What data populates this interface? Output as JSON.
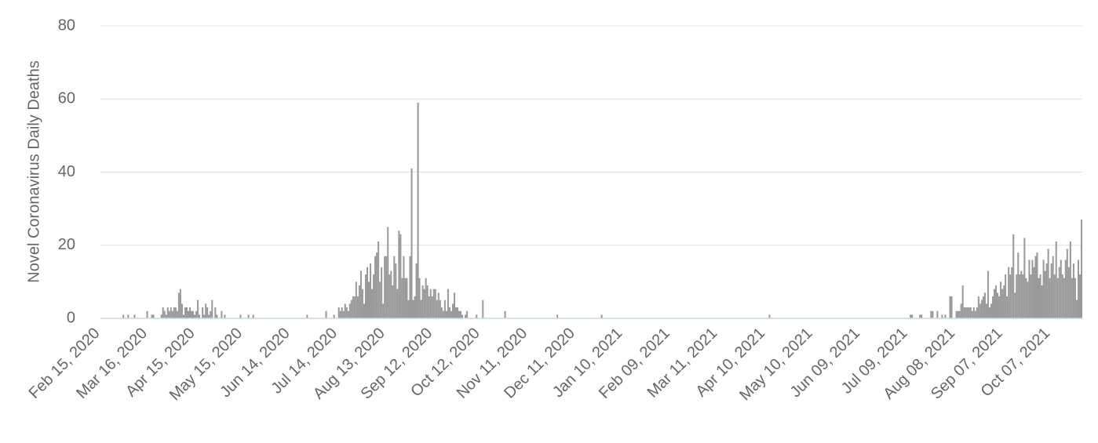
{
  "chart_data": {
    "type": "bar",
    "y_label": "Novel Coronavirus Daily Deaths",
    "color": "#999999",
    "ylim": [
      0,
      80
    ],
    "yticks": [
      0,
      20,
      40,
      60,
      80
    ],
    "grid": true,
    "categories": [
      "Feb 15, 2020",
      null,
      null,
      null,
      null,
      null,
      null,
      null,
      null,
      null,
      null,
      null,
      null,
      null,
      null,
      null,
      null,
      null,
      null,
      null,
      null,
      null,
      null,
      null,
      null,
      null,
      null,
      null,
      null,
      null,
      "Mar 16, 2020",
      null,
      null,
      null,
      null,
      null,
      null,
      null,
      null,
      null,
      null,
      null,
      null,
      null,
      null,
      null,
      null,
      null,
      null,
      null,
      null,
      null,
      null,
      null,
      null,
      null,
      null,
      null,
      null,
      null,
      "Apr 15, 2020",
      null,
      null,
      null,
      null,
      null,
      null,
      null,
      null,
      null,
      null,
      null,
      null,
      null,
      null,
      null,
      null,
      null,
      null,
      null,
      null,
      null,
      null,
      null,
      null,
      null,
      null,
      null,
      null,
      null,
      "May 15, 2020",
      null,
      null,
      null,
      null,
      null,
      null,
      null,
      null,
      null,
      null,
      null,
      null,
      null,
      null,
      null,
      null,
      null,
      null,
      null,
      null,
      null,
      null,
      null,
      null,
      null,
      null,
      null,
      null,
      null,
      "Jun 14, 2020",
      null,
      null,
      null,
      null,
      null,
      null,
      null,
      null,
      null,
      null,
      null,
      null,
      null,
      null,
      null,
      null,
      null,
      null,
      null,
      null,
      null,
      null,
      null,
      null,
      null,
      null,
      null,
      null,
      null,
      "Jul 14, 2020",
      null,
      null,
      null,
      null,
      null,
      null,
      null,
      null,
      null,
      null,
      null,
      null,
      null,
      null,
      null,
      null,
      null,
      null,
      null,
      null,
      null,
      null,
      null,
      null,
      null,
      null,
      null,
      null,
      null,
      "Aug 13, 2020",
      null,
      null,
      null,
      null,
      null,
      null,
      null,
      null,
      null,
      null,
      null,
      null,
      null,
      null,
      null,
      null,
      null,
      null,
      null,
      null,
      null,
      null,
      null,
      null,
      null,
      null,
      null,
      null,
      null,
      "Sep 12, 2020",
      null,
      null,
      null,
      null,
      null,
      null,
      null,
      null,
      null,
      null,
      null,
      null,
      null,
      null,
      null,
      null,
      null,
      null,
      null,
      null,
      null,
      null,
      null,
      null,
      null,
      null,
      null,
      null,
      null,
      "Oct 12, 2020",
      null,
      null,
      null,
      null,
      null,
      null,
      null,
      null,
      null,
      null,
      null,
      null,
      null,
      null,
      null,
      null,
      null,
      null,
      null,
      null,
      null,
      null,
      null,
      null,
      null,
      null,
      null,
      null,
      null,
      "Nov 11, 2020",
      null,
      null,
      null,
      null,
      null,
      null,
      null,
      null,
      null,
      null,
      null,
      null,
      null,
      null,
      null,
      null,
      null,
      null,
      null,
      null,
      null,
      null,
      null,
      null,
      null,
      null,
      null,
      null,
      null,
      "Dec 11, 2020",
      null,
      null,
      null,
      null,
      null,
      null,
      null,
      null,
      null,
      null,
      null,
      null,
      null,
      null,
      null,
      null,
      null,
      null,
      null,
      null,
      null,
      null,
      null,
      null,
      null,
      null,
      null,
      null,
      null,
      "Jan 10, 2021",
      null,
      null,
      null,
      null,
      null,
      null,
      null,
      null,
      null,
      null,
      null,
      null,
      null,
      null,
      null,
      null,
      null,
      null,
      null,
      null,
      null,
      null,
      null,
      null,
      null,
      null,
      null,
      null,
      null,
      "Feb 09, 2021",
      null,
      null,
      null,
      null,
      null,
      null,
      null,
      null,
      null,
      null,
      null,
      null,
      null,
      null,
      null,
      null,
      null,
      null,
      null,
      null,
      null,
      null,
      null,
      null,
      null,
      null,
      null,
      null,
      null,
      "Mar 11, 2021",
      null,
      null,
      null,
      null,
      null,
      null,
      null,
      null,
      null,
      null,
      null,
      null,
      null,
      null,
      null,
      null,
      null,
      null,
      null,
      null,
      null,
      null,
      null,
      null,
      null,
      null,
      null,
      null,
      null,
      "Apr 10, 2021",
      null,
      null,
      null,
      null,
      null,
      null,
      null,
      null,
      null,
      null,
      null,
      null,
      null,
      null,
      null,
      null,
      null,
      null,
      null,
      null,
      null,
      null,
      null,
      null,
      null,
      null,
      null,
      null,
      null,
      "May 10, 2021",
      null,
      null,
      null,
      null,
      null,
      null,
      null,
      null,
      null,
      null,
      null,
      null,
      null,
      null,
      null,
      null,
      null,
      null,
      null,
      null,
      null,
      null,
      null,
      null,
      null,
      null,
      null,
      null,
      null,
      "Jun 09, 2021",
      null,
      null,
      null,
      null,
      null,
      null,
      null,
      null,
      null,
      null,
      null,
      null,
      null,
      null,
      null,
      null,
      null,
      null,
      null,
      null,
      null,
      null,
      null,
      null,
      null,
      null,
      null,
      null,
      null,
      "Jul 09, 2021",
      null,
      null,
      null,
      null,
      null,
      null,
      null,
      null,
      null,
      null,
      null,
      null,
      null,
      null,
      null,
      null,
      null,
      null,
      null,
      null,
      null,
      null,
      null,
      null,
      null,
      null,
      null,
      null,
      null,
      "Aug 08, 2021",
      null,
      null,
      null,
      null,
      null,
      null,
      null,
      null,
      null,
      null,
      null,
      null,
      null,
      null,
      null,
      null,
      null,
      null,
      null,
      null,
      null,
      null,
      null,
      null,
      null,
      null,
      null,
      null,
      null,
      "Sep 07, 2021",
      null,
      null,
      null,
      null,
      null,
      null,
      null,
      null,
      null,
      null,
      null,
      null,
      null,
      null,
      null,
      null,
      null,
      null,
      null,
      null,
      null,
      null,
      null,
      null,
      null,
      null,
      null,
      null,
      null,
      "Oct 07, 2021",
      null,
      null,
      null,
      null,
      null,
      null,
      null,
      null,
      null,
      null,
      null,
      null,
      null,
      null,
      null,
      null,
      null,
      null,
      null
    ],
    "values": [
      0,
      0,
      0,
      0,
      0,
      0,
      0,
      0,
      0,
      0,
      0,
      0,
      0,
      0,
      1,
      0,
      0,
      1,
      0,
      0,
      0,
      1,
      0,
      0,
      0,
      0,
      0,
      0,
      0,
      2,
      0,
      0,
      1,
      1,
      0,
      0,
      0,
      0,
      1,
      3,
      2,
      1,
      3,
      2,
      3,
      2,
      3,
      3,
      2,
      7,
      8,
      4,
      1,
      3,
      3,
      2,
      3,
      2,
      2,
      1,
      2,
      5,
      1,
      0,
      3,
      1,
      4,
      3,
      1,
      2,
      5,
      0,
      3,
      1,
      0,
      0,
      2,
      0,
      1,
      0,
      0,
      0,
      0,
      0,
      0,
      0,
      0,
      0,
      1,
      0,
      0,
      0,
      0,
      1,
      0,
      0,
      1,
      0,
      0,
      0,
      0,
      0,
      0,
      0,
      0,
      0,
      0,
      0,
      0,
      0,
      0,
      0,
      0,
      0,
      0,
      0,
      0,
      0,
      0,
      0,
      0,
      0,
      0,
      0,
      0,
      0,
      0,
      0,
      0,
      0,
      1,
      0,
      0,
      0,
      0,
      0,
      0,
      0,
      0,
      0,
      0,
      0,
      2,
      0,
      0,
      0,
      0,
      1,
      0,
      0,
      3,
      2,
      3,
      2,
      4,
      3,
      2,
      4,
      5,
      6,
      6,
      10,
      6,
      9,
      13,
      8,
      4,
      12,
      14,
      10,
      15,
      8,
      12,
      17,
      18,
      21,
      10,
      14,
      4,
      17,
      17,
      25,
      12,
      13,
      9,
      17,
      15,
      8,
      24,
      23,
      11,
      17,
      11,
      11,
      5,
      17,
      41,
      5,
      6,
      15,
      59,
      11,
      5,
      9,
      8,
      11,
      9,
      6,
      8,
      6,
      8,
      8,
      5,
      7,
      5,
      3,
      2,
      5,
      2,
      8,
      3,
      2,
      4,
      7,
      3,
      3,
      2,
      2,
      1,
      0,
      1,
      2,
      0,
      0,
      0,
      0,
      0,
      1,
      0,
      0,
      0,
      5,
      0,
      0,
      0,
      0,
      0,
      0,
      0,
      0,
      0,
      0,
      0,
      0,
      0,
      2,
      0,
      0,
      0,
      0,
      0,
      0,
      0,
      0,
      0,
      0,
      0,
      0,
      0,
      0,
      0,
      0,
      0,
      0,
      0,
      0,
      0,
      0,
      0,
      0,
      0,
      0,
      0,
      0,
      0,
      0,
      0,
      0,
      1,
      0,
      0,
      0,
      0,
      0,
      0,
      0,
      0,
      0,
      0,
      0,
      0,
      0,
      0,
      0,
      0,
      0,
      0,
      0,
      0,
      0,
      0,
      0,
      0,
      0,
      0,
      0,
      1,
      0,
      0,
      0,
      0,
      0,
      0,
      0,
      0,
      0,
      0,
      0,
      0,
      0,
      0,
      0,
      0,
      0,
      0,
      0,
      0,
      0,
      0,
      0,
      0,
      0,
      0,
      0,
      0,
      0,
      0,
      0,
      0,
      0,
      0,
      0,
      0,
      0,
      0,
      0,
      0,
      0,
      0,
      0,
      0,
      0,
      0,
      0,
      0,
      0,
      0,
      0,
      0,
      0,
      0,
      0,
      0,
      0,
      0,
      0,
      0,
      0,
      0,
      0,
      0,
      0,
      0,
      0,
      0,
      0,
      0,
      0,
      0,
      0,
      0,
      0,
      0,
      0,
      0,
      0,
      0,
      0,
      0,
      0,
      0,
      0,
      0,
      0,
      0,
      0,
      0,
      0,
      0,
      0,
      0,
      0,
      0,
      0,
      0,
      0,
      0,
      0,
      0,
      0,
      0,
      0,
      1,
      0,
      0,
      0,
      0,
      0,
      0,
      0,
      0,
      0,
      0,
      0,
      0,
      0,
      0,
      0,
      0,
      0,
      0,
      0,
      0,
      0,
      0,
      0,
      0,
      0,
      0,
      0,
      0,
      0,
      0,
      0,
      0,
      0,
      0,
      0,
      0,
      0,
      0,
      0,
      0,
      0,
      0,
      0,
      0,
      0,
      0,
      0,
      0,
      0,
      0,
      0,
      0,
      0,
      0,
      0,
      0,
      0,
      0,
      0,
      0,
      0,
      0,
      0,
      0,
      0,
      0,
      0,
      0,
      0,
      0,
      0,
      0,
      0,
      0,
      0,
      0,
      0,
      0,
      0,
      0,
      0,
      0,
      0,
      0,
      0,
      0,
      0,
      0,
      1,
      1,
      0,
      0,
      0,
      0,
      1,
      1,
      0,
      0,
      0,
      0,
      0,
      2,
      2,
      0,
      0,
      2,
      0,
      0,
      1,
      0,
      1,
      0,
      0,
      6,
      6,
      0,
      0,
      2,
      2,
      2,
      4,
      9,
      3,
      3,
      3,
      3,
      3,
      2,
      3,
      2,
      3,
      6,
      4,
      5,
      6,
      7,
      4,
      13,
      3,
      4,
      6,
      8,
      9,
      7,
      6,
      10,
      8,
      9,
      12,
      6,
      14,
      12,
      14,
      23,
      7,
      12,
      18,
      12,
      13,
      12,
      22,
      11,
      10,
      16,
      12,
      16,
      14,
      17,
      18,
      11,
      12,
      9,
      16,
      13,
      15,
      19,
      11,
      15,
      17,
      12,
      21,
      11,
      14,
      16,
      12,
      11,
      16,
      19,
      14,
      21,
      11,
      15,
      11,
      5,
      16,
      12,
      27
    ]
  }
}
